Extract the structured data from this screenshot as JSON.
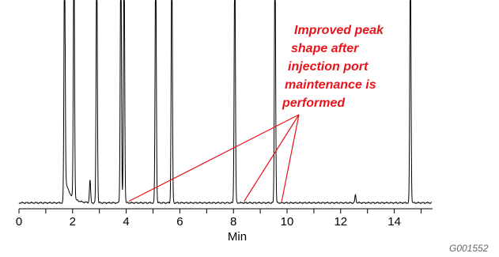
{
  "chart_data": {
    "type": "line",
    "xlabel": "Min",
    "ylabel": "",
    "xlim": [
      0,
      15.4
    ],
    "ticks": [
      {
        "value": 0,
        "label": "0"
      },
      {
        "value": 2,
        "label": "2"
      },
      {
        "value": 4,
        "label": "4"
      },
      {
        "value": 6,
        "label": "6"
      },
      {
        "value": 8,
        "label": "8"
      },
      {
        "value": 10,
        "label": "10"
      },
      {
        "value": 12,
        "label": "12"
      },
      {
        "value": 14,
        "label": "14"
      }
    ],
    "grid": false,
    "series": [
      {
        "color": "#000000",
        "peaks_min": [
          1.7,
          2.05,
          2.65,
          2.9,
          3.8,
          3.92,
          5.1,
          5.7,
          8.05,
          9.55,
          12.55,
          14.6
        ],
        "peak_heights": [
          1.0,
          1.0,
          0.09,
          1.0,
          1.0,
          1.0,
          1.0,
          1.0,
          1.0,
          1.0,
          0.03,
          1.0
        ]
      }
    ],
    "annotation": {
      "lines": [
        "Improved peak",
        "shape after",
        "injection port",
        "maintenance is",
        "performed"
      ],
      "color": "#e8141b",
      "pointer_targets_min": [
        4.1,
        8.4,
        9.8
      ]
    }
  },
  "figure_id": "G001552"
}
